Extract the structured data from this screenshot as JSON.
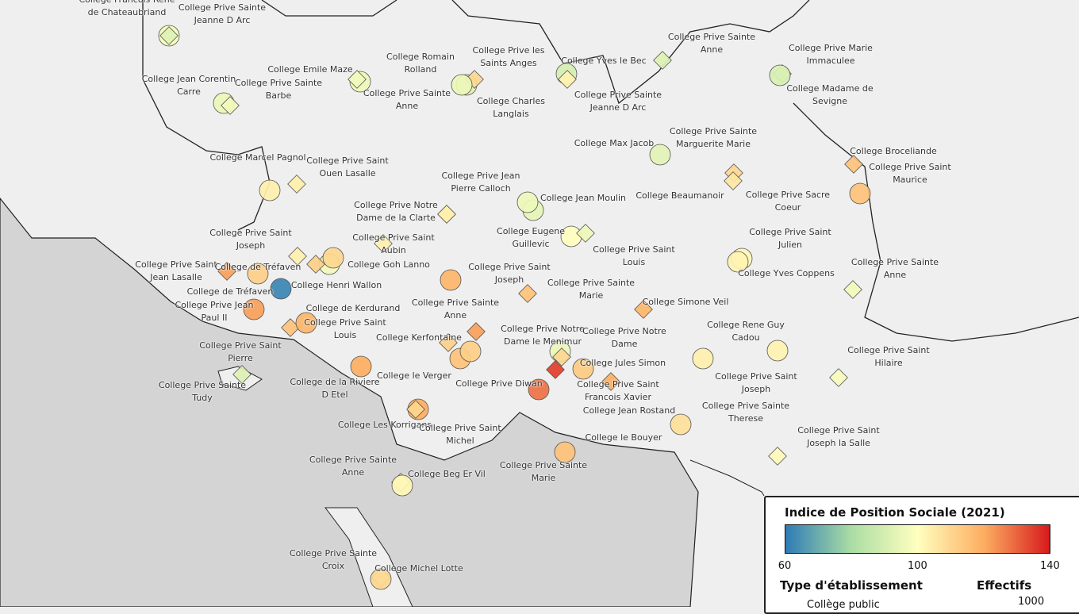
{
  "legend": {
    "title": "Indice de Position Sociale (2021)",
    "ticks": [
      60,
      100,
      140
    ],
    "type_title": "Type d'établissement",
    "size_title": "Effectifs",
    "public_label": "Collège public",
    "size_value": 1000
  },
  "schools": [
    {
      "name": "College Francois Rene de Chateaubriand",
      "type": "public",
      "ips": 98
    },
    {
      "name": "College Prive Sainte Jeanne D Arc",
      "type": "private",
      "ips": 92
    },
    {
      "name": "College Jean Corentin Carre",
      "type": "public",
      "ips": 95
    },
    {
      "name": "College Prive Sainte Barbe",
      "type": "private",
      "ips": 97
    },
    {
      "name": "College Emile Maze",
      "type": "public",
      "ips": 96
    },
    {
      "name": "College Prive Sainte Anne",
      "type": "private",
      "ips": 97
    },
    {
      "name": "College Romain Rolland",
      "type": "public",
      "ips": 93
    },
    {
      "name": "College Prive les Saints Anges",
      "type": "private",
      "ips": 110
    },
    {
      "name": "College Charles Langlais",
      "type": "public",
      "ips": 95
    },
    {
      "name": "College Yves le Bec",
      "type": "public",
      "ips": 90
    },
    {
      "name": "College Prive Sainte Jeanne D Arc",
      "type": "private",
      "ips": 103
    },
    {
      "name": "College Prive Sainte Anne",
      "type": "private",
      "ips": 92
    },
    {
      "name": "College Prive Marie Immaculee",
      "type": "private",
      "ips": 90
    },
    {
      "name": "College Madame de Sevigne",
      "type": "public",
      "ips": 91
    },
    {
      "name": "College Max Jacob",
      "type": "public",
      "ips": 93
    },
    {
      "name": "College Prive Sainte Marguerite Marie",
      "type": "private",
      "ips": 110
    },
    {
      "name": "College Broceliande",
      "type": "private",
      "ips": 115
    },
    {
      "name": "College Prive Saint Maurice",
      "type": "public",
      "ips": 115
    },
    {
      "name": "College Marcel Pagnol",
      "type": "public",
      "ips": 104
    },
    {
      "name": "College Prive Saint Ouen Lasalle",
      "type": "private",
      "ips": 104
    },
    {
      "name": "College Prive Jean Pierre Calloch",
      "type": "private",
      "ips": 102
    },
    {
      "name": "College Jean Moulin",
      "type": "public",
      "ips": 94
    },
    {
      "name": "College Beaumanoir",
      "type": "public",
      "ips": 96
    },
    {
      "name": "College Prive Sacre Coeur",
      "type": "private",
      "ips": 106
    },
    {
      "name": "College Prive Notre Dame de la Clarte",
      "type": "private",
      "ips": 104
    },
    {
      "name": "College Eugene Guillevic",
      "type": "public",
      "ips": 100
    },
    {
      "name": "College Prive Saint Julien",
      "type": "public",
      "ips": 102
    },
    {
      "name": "College Prive Saint Joseph",
      "type": "private",
      "ips": 104
    },
    {
      "name": "College Prive Saint Aubin",
      "type": "private",
      "ips": 104
    },
    {
      "name": "College Prive Saint Louis",
      "type": "private",
      "ips": 96
    },
    {
      "name": "College Goh Lanno",
      "type": "public",
      "ips": 118
    },
    {
      "name": "College Yves Coppens",
      "type": "public",
      "ips": 103
    },
    {
      "name": "College Prive Saint Jean Lasalle",
      "type": "private",
      "ips": 122
    },
    {
      "name": "College de Tréfaven",
      "type": "public",
      "ips": 112
    },
    {
      "name": "College Prive Saint Joseph",
      "type": "private",
      "ips": 115
    },
    {
      "name": "College Henri Wallon",
      "type": "public",
      "ips": 97
    },
    {
      "name": "College Prive Sainte Marie",
      "type": "private",
      "ips": 112
    },
    {
      "name": "College Prive Sainte Anne",
      "type": "private",
      "ips": 97
    },
    {
      "name": "College de Tréfaven",
      "type": "public",
      "ips": 62
    },
    {
      "name": "College Prive Jean Paul II",
      "type": "public",
      "ips": 122
    },
    {
      "name": "College de Kerdurand",
      "type": "public",
      "ips": 110
    },
    {
      "name": "College Prive Sainte Anne",
      "type": "private",
      "ips": 122
    },
    {
      "name": "College Simone Veil",
      "type": "private",
      "ips": 118
    },
    {
      "name": "College Prive Saint Louis",
      "type": "private",
      "ips": 115
    },
    {
      "name": "College Rene Guy Cadou",
      "type": "public",
      "ips": 103
    },
    {
      "name": "College Kerfontaine",
      "type": "private",
      "ips": 112
    },
    {
      "name": "College Prive Notre Dame le Menimur",
      "type": "public",
      "ips": 95
    },
    {
      "name": "College Prive Notre Dame",
      "type": "private",
      "ips": 110
    },
    {
      "name": "College Prive Saint Pierre",
      "type": "public",
      "ips": 118
    },
    {
      "name": "College Prive Saint Hilaire",
      "type": "private",
      "ips": 98
    },
    {
      "name": "College Jules Simon",
      "type": "public",
      "ips": 113
    },
    {
      "name": "College le Verger",
      "type": "public",
      "ips": 120
    },
    {
      "name": "College Prive Sainte Tudy",
      "type": "private",
      "ips": 92
    },
    {
      "name": "College de la Riviere D Etel",
      "type": "public",
      "ips": 115
    },
    {
      "name": "College Prive Diwan",
      "type": "public",
      "ips": 128
    },
    {
      "name": "College Prive Saint Francois Xavier",
      "type": "private",
      "ips": 120
    },
    {
      "name": "College Prive Saint Joseph",
      "type": "public",
      "ips": 104
    },
    {
      "name": "College Jean Rostand",
      "type": "private",
      "ips": 135
    },
    {
      "name": "College Prive Sainte Therese",
      "type": "public",
      "ips": 108
    },
    {
      "name": "College Les Korrigans",
      "type": "public",
      "ips": 120
    },
    {
      "name": "College Prive Saint Michel",
      "type": "private",
      "ips": 110
    },
    {
      "name": "College le Bouyer",
      "type": "public",
      "ips": 112
    },
    {
      "name": "College Prive Saint Joseph la Salle",
      "type": "private",
      "ips": 101
    },
    {
      "name": "College Prive Sainte Anne",
      "type": "private",
      "ips": 104
    },
    {
      "name": "College Prive Sainte Marie",
      "type": "public",
      "ips": 115
    },
    {
      "name": "College Beg Er Vil",
      "type": "public",
      "ips": 102
    },
    {
      "name": "College Prive Sainte Croix",
      "type": "private",
      "ips": 100
    },
    {
      "name": "College Michel Lotte",
      "type": "public",
      "ips": 110
    }
  ]
}
